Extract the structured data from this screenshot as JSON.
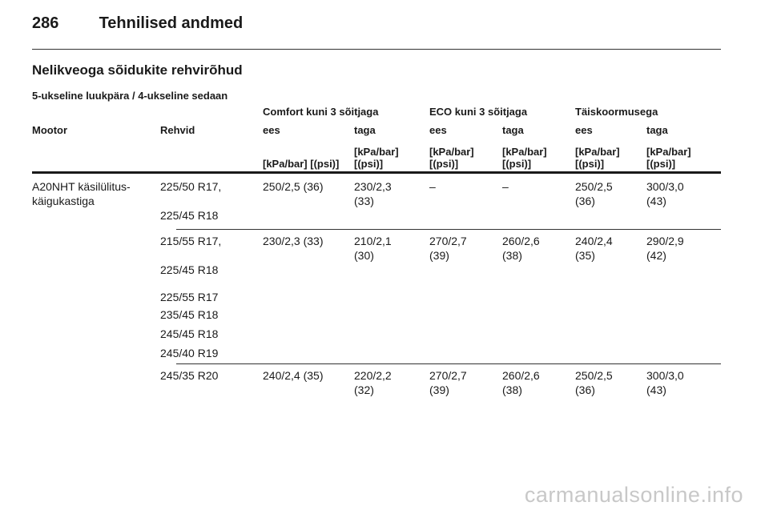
{
  "page": {
    "number": "286",
    "header": "Tehnilised andmed"
  },
  "section_title": "Nelikveoga sõidukite rehvirõhud",
  "sub_title": "5-ukseline luukpära / 4-ukseline sedaan",
  "table": {
    "groups": [
      "Comfort kuni 3 sõitjaga",
      "ECO kuni 3 sõitjaga",
      "Täiskoormusega"
    ],
    "col_motor": "Mootor",
    "col_tyre": "Rehvid",
    "col_front": "ees",
    "col_rear": "taga",
    "unit_single": "[kPa/bar] [(psi)]",
    "unit_top": "[kPa/bar]",
    "unit_bottom": "[(psi)]",
    "motor": [
      "A20NHT käsilülitus-",
      "käigukastiga"
    ],
    "row1": {
      "tyres": [
        "225/50 R17,",
        "225/45 R18"
      ],
      "v": [
        "250/2,5 (36)",
        "230/2,3",
        "(33)",
        "–",
        "–",
        "250/2,5",
        "(36)",
        "300/3,0",
        "(43)"
      ]
    },
    "row2": {
      "tyres": [
        "215/55 R17,",
        "225/45 R18",
        "225/55 R17",
        "235/45 R18",
        "245/45 R18",
        "245/40 R19"
      ],
      "v": [
        "230/2,3 (33)",
        "210/2,1",
        "(30)",
        "270/2,7",
        "(39)",
        "260/2,6",
        "(38)",
        "240/2,4",
        "(35)",
        "290/2,9",
        "(42)"
      ]
    },
    "row3": {
      "tyres": [
        "245/35 R20"
      ],
      "v": [
        "240/2,4 (35)",
        "220/2,2",
        "(32)",
        "270/2,7",
        "(39)",
        "260/2,6",
        "(38)",
        "250/2,5",
        "(36)",
        "300/3,0",
        "(43)"
      ]
    }
  },
  "watermark": "carmanualsonline.info"
}
